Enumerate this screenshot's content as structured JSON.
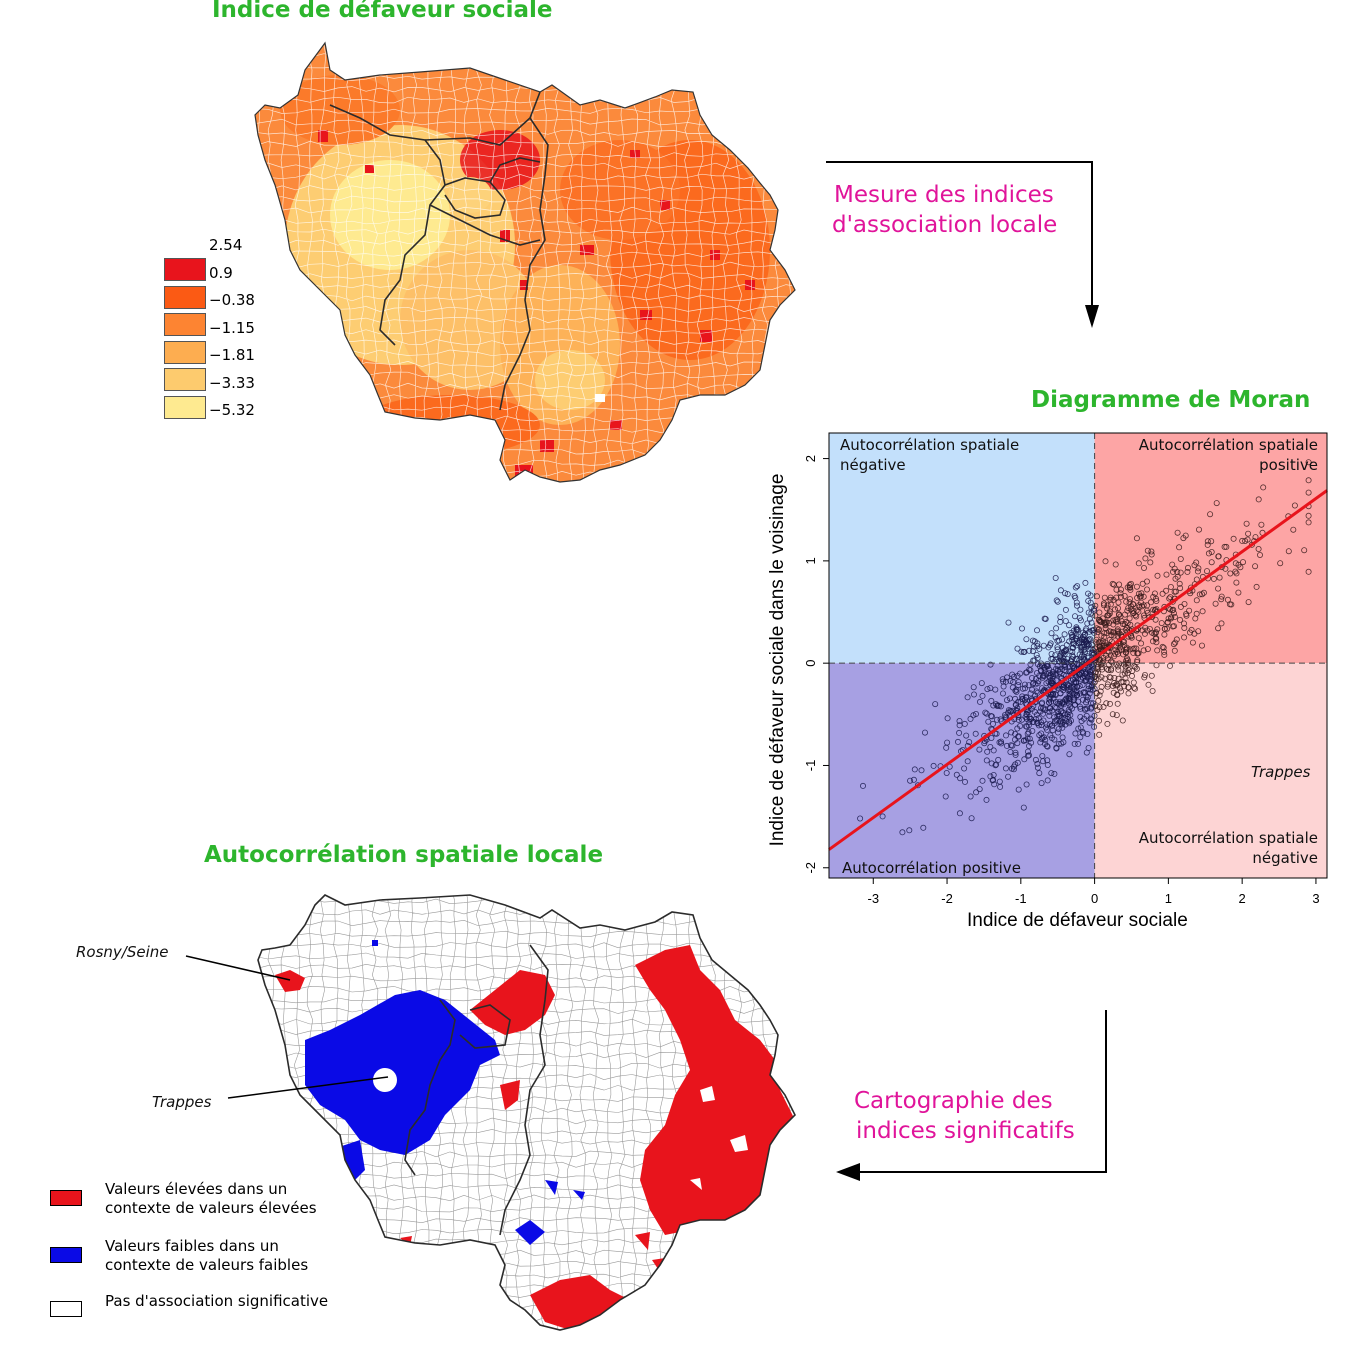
{
  "top_map": {
    "title": "Indice de défaveur sociale",
    "legend_breaks": [
      "2.54",
      "0.9",
      "−0.38",
      "−1.15",
      "−1.81",
      "−3.33",
      "−5.32"
    ],
    "legend_colors": [
      "#e8141c",
      "#fb5a14",
      "#fd8432",
      "#fdad50",
      "#fdcb6e",
      "#feea90"
    ]
  },
  "arrow_1_label": [
    "Mesure des indices",
    "d'association locale"
  ],
  "moran": {
    "title": "Diagramme de Moran",
    "quadrants": {
      "top_left": [
        "Autocorrélation spatiale",
        "négative"
      ],
      "top_right": [
        "Autocorrélation spatiale",
        "positive"
      ],
      "bottom_left": [
        "Autocorrélation positive"
      ],
      "bottom_right": [
        "Autocorrélation spatiale",
        "négative"
      ]
    },
    "annotation": "Trappes",
    "colors": {
      "top_left": "#c3e0fb",
      "top_right": "#fda5a5",
      "bottom_left": "#a7a0e3",
      "bottom_right": "#fdd4d4",
      "regression": "#e8141c"
    }
  },
  "chart_data": {
    "type": "scatter",
    "title": "Diagramme de Moran",
    "xlabel": "Indice de défaveur sociale",
    "ylabel": "Indice de défaveur sociale dans le voisinage",
    "xlim": [
      -3.6,
      3.15
    ],
    "ylim": [
      -2.1,
      2.25
    ],
    "xticks": [
      -3,
      -2,
      -1,
      0,
      1,
      2,
      3
    ],
    "yticks": [
      -2,
      -1,
      0,
      1,
      2
    ],
    "regression": {
      "slope": 0.52,
      "intercept": 0.05
    },
    "points": "~1300 municipalities (x, spatial lag of x)"
  },
  "arrow_2_label": [
    "Cartographie des",
    "indices significatifs"
  ],
  "bottom_map": {
    "title": "Autocorrélation spatiale locale",
    "callouts": [
      "Rosny/Seine",
      "Trappes"
    ],
    "legend": [
      {
        "label": [
          "Valeurs élevées dans un",
          "contexte de valeurs élevées"
        ],
        "color": "#e8141c"
      },
      {
        "label": [
          "Valeurs faibles dans un",
          "contexte de valeurs faibles"
        ],
        "color": "#0a0ae6"
      },
      {
        "label": [
          "Pas d'association significative"
        ],
        "color": "#ffffff"
      }
    ]
  }
}
